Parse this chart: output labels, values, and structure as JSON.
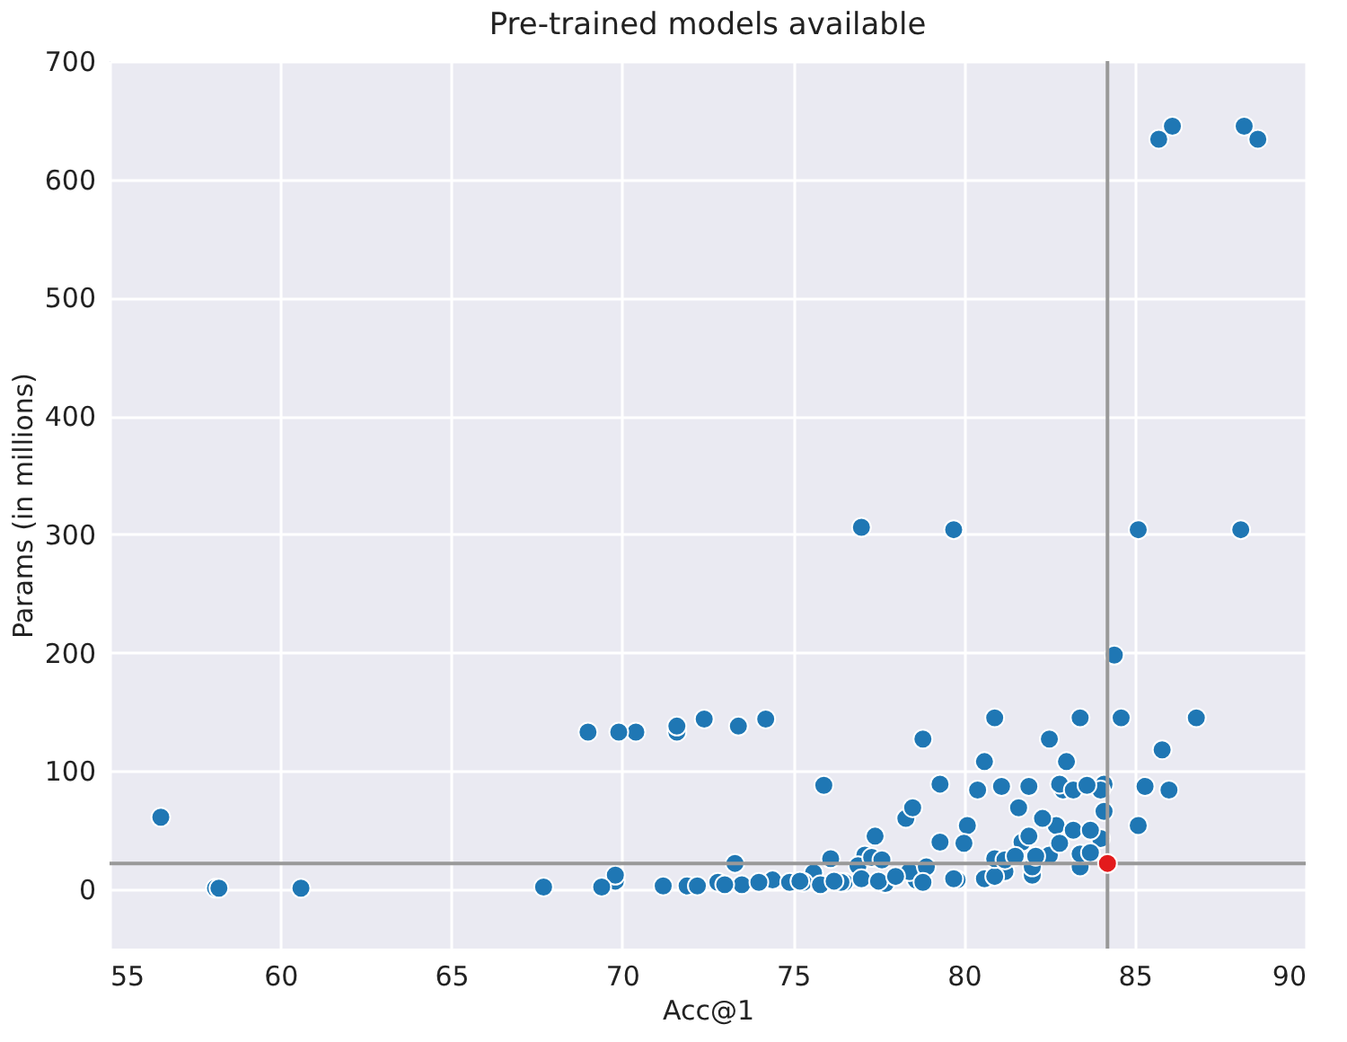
{
  "chart_data": {
    "type": "scatter",
    "title": "Pre-trained models available",
    "xlabel": "Acc@1",
    "ylabel": "Params (in millions)",
    "xlim": [
      55,
      90
    ],
    "xticks": [
      55,
      60,
      65,
      70,
      75,
      80,
      85,
      90
    ],
    "ylim": [
      -50,
      700
    ],
    "yticks": [
      0,
      100,
      200,
      300,
      400,
      500,
      600,
      700
    ],
    "grid": true,
    "series": [
      {
        "color": "#1f77b4",
        "x": [
          56.5,
          84.1,
          84.4,
          82.5,
          74.4,
          77.1,
          75.6,
          76.9,
          77.7,
          78.6,
          79.8,
          80.6,
          82.0,
          83.4,
          83.4,
          84.0,
          84.1,
          85.8,
          85.1,
          69.8,
          77.3,
          83.7,
          67.7,
          71.2,
          73.5,
          76.5,
          71.9,
          72.2,
          74.0,
          75.3,
          80.1,
          82.7,
          77.0,
          79.7,
          80.6,
          83.0,
          78.4,
          81.2,
          72.8,
          74.9,
          75.2,
          77.5,
          79.3,
          81.7,
          88.2,
          86.1,
          80.4,
          82.9,
          86.0,
          84.0,
          78.0,
          80.9,
          80.9,
          83.4,
          86.8,
          84.6,
          78.9,
          82.0,
          75.8,
          76.4,
          78.8,
          80.0,
          82.8,
          77.4,
          81.9,
          78.3,
          82.3,
          69.8,
          73.3,
          76.1,
          80.9,
          79.3,
          82.8,
          83.2,
          77.6,
          81.2,
          60.6,
          69.4,
          73.0,
          76.2,
          58.1,
          58.2,
          83.6,
          83.2,
          81.5,
          83.7,
          82.1,
          69.0,
          70.4,
          69.9,
          71.6,
          71.6,
          73.4,
          72.4,
          74.2,
          81.1,
          85.3,
          81.9,
          75.9,
          88.6,
          85.7,
          79.7,
          88.1,
          85.1,
          77.0,
          78.8,
          82.5,
          78.5,
          81.6
        ],
        "values": [
          61,
          89,
          198,
          29,
          8,
          29,
          14,
          20,
          5,
          8,
          8,
          9,
          12,
          19,
          30,
          43,
          66,
          118,
          54,
          7,
          27,
          31,
          2,
          3,
          4,
          6,
          3,
          3,
          6,
          6,
          54,
          54,
          9,
          9,
          108,
          108,
          15,
          15,
          6,
          6,
          7,
          7,
          40,
          40,
          645,
          645,
          84,
          84,
          84,
          84,
          11,
          11,
          145,
          145,
          145,
          145,
          19,
          19,
          4,
          6,
          6,
          39,
          39,
          45,
          45,
          60,
          60,
          12,
          22,
          26,
          26,
          89,
          89,
          84,
          25,
          25,
          1,
          2,
          4,
          7,
          1,
          1,
          88,
          50,
          28,
          50,
          28,
          133,
          133,
          133,
          133,
          138,
          138,
          144,
          144,
          87,
          87,
          87,
          88,
          634,
          634,
          304,
          304,
          304,
          306,
          127,
          127,
          69,
          69
        ]
      },
      {
        "color": "#e31a1c",
        "x": [
          84.2
        ],
        "values": [
          22
        ]
      }
    ],
    "ref_lines": [
      {
        "axis": "x",
        "value": 84.2,
        "color": "#999999"
      },
      {
        "axis": "y",
        "value": 22,
        "color": "#999999"
      }
    ]
  }
}
